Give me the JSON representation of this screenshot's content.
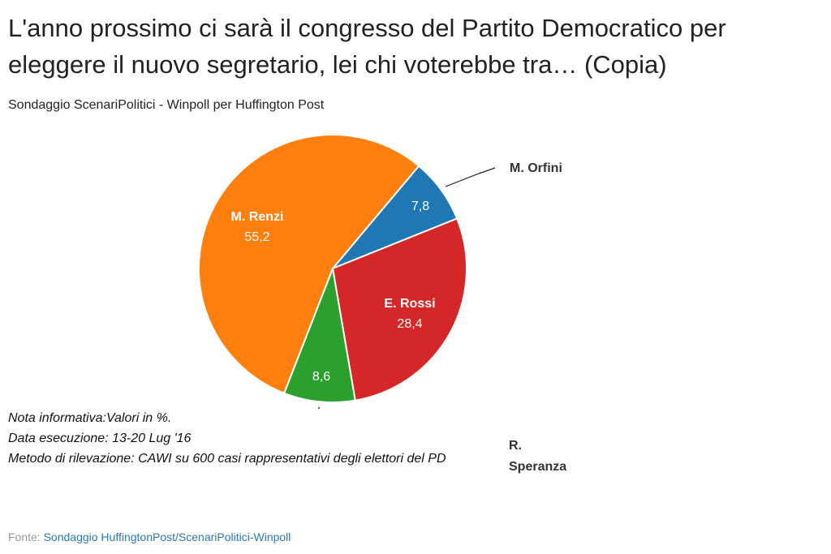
{
  "chart_data": {
    "type": "pie",
    "title": "L'anno prossimo ci sarà il congresso del Partito Democratico per eleggere il nuovo segretario, lei chi voterebbe tra… (Copia)",
    "subtitle": "Sondaggio ScenariPolitici - Winpoll per Huffington Post",
    "categories": [
      "M. Orfini",
      "E. Rossi",
      "R. Speranza",
      "M. Renzi"
    ],
    "values": [
      7.8,
      28.4,
      8.6,
      55.2
    ],
    "value_labels": [
      "7,8",
      "28,4",
      "8,6",
      "55,2"
    ],
    "colors": [
      "#1f77b4",
      "#d62728",
      "#2ca02c",
      "#ff7f0e"
    ],
    "notes": [
      "Nota informativa:Valori in %.",
      "Data esecuzione: 13-20 Lug '16",
      "Metodo di rilevazione: CAWI su 600 casi rappresentativi degli elettori del PD"
    ],
    "source_label": "Fonte:",
    "source_text": "Sondaggio HuffingtonPost/ScenariPolitici-Winpoll"
  }
}
